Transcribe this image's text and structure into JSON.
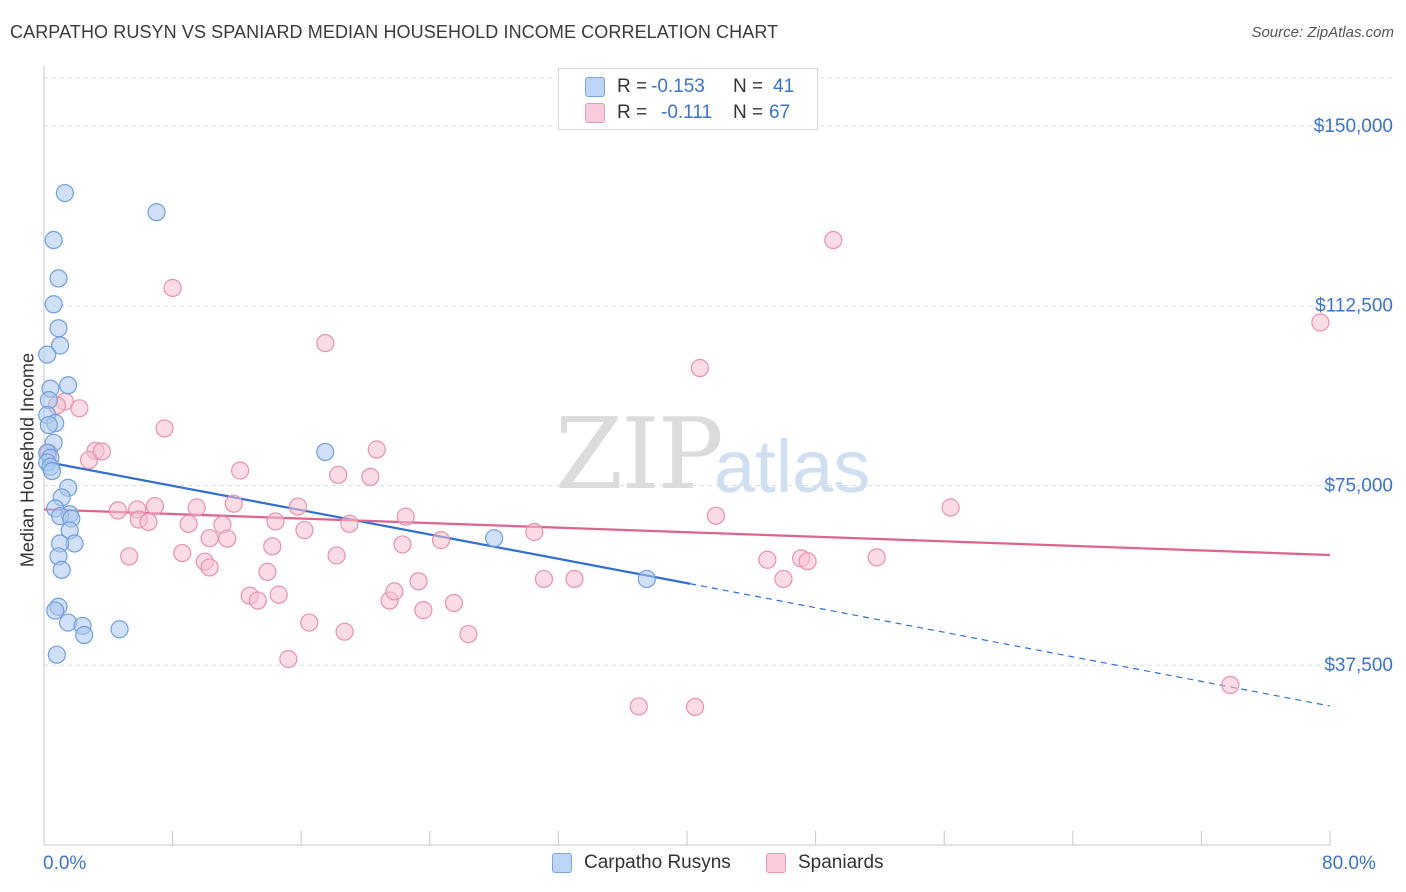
{
  "title": "CARPATHO RUSYN VS SPANIARD MEDIAN HOUSEHOLD INCOME CORRELATION CHART",
  "source": "Source: ZipAtlas.com",
  "watermark": {
    "zip": "ZIP",
    "atlas": "atlas"
  },
  "legend_top": {
    "rows": [
      {
        "r_label": "R =",
        "r_value": "-0.153",
        "n_label": "N =",
        "n_value": "41"
      },
      {
        "r_label": "R =",
        "r_value": "-0.111",
        "n_label": "N =",
        "n_value": "67"
      }
    ]
  },
  "legend_bottom": {
    "series1": "Carpatho Rusyns",
    "series2": "Spaniards"
  },
  "colors": {
    "blue_fill": "#a9c8f0",
    "blue_stroke": "#6f9fdc",
    "blue_line": "#2f6fd0",
    "pink_fill": "#f7bfd0",
    "pink_stroke": "#e890ad",
    "pink_line": "#e0628f",
    "grid": "#dddddd",
    "tick_label": "#3a74c8"
  },
  "chart_data": {
    "type": "scatter",
    "title": "CARPATHO RUSYN VS SPANIARD MEDIAN HOUSEHOLD INCOME CORRELATION CHART",
    "xlabel": "",
    "ylabel": "Median Household Income",
    "xlim": [
      0,
      80
    ],
    "ylim": [
      0,
      160000
    ],
    "x_tick_labels": [
      "0.0%",
      "80.0%"
    ],
    "y_ticks": [
      37500,
      75000,
      112500,
      150000
    ],
    "y_tick_labels": [
      "$37,500",
      "$75,000",
      "$112,500",
      "$150,000"
    ],
    "grid": true,
    "series": [
      {
        "name": "Carpatho Rusyns",
        "r": -0.153,
        "n": 41,
        "trend": {
          "x0": 0,
          "y0": 80000,
          "x1": 40.2,
          "y1": 54500,
          "dash_to_x": 80,
          "dash_to_y": 29000
        },
        "points": [
          [
            1.3,
            136000
          ],
          [
            0.6,
            126200
          ],
          [
            0.9,
            118200
          ],
          [
            0.6,
            112800
          ],
          [
            0.9,
            107800
          ],
          [
            1.0,
            104200
          ],
          [
            0.2,
            102300
          ],
          [
            1.5,
            95900
          ],
          [
            0.4,
            95200
          ],
          [
            0.3,
            92800
          ],
          [
            0.2,
            89700
          ],
          [
            0.7,
            88000
          ],
          [
            0.3,
            87600
          ],
          [
            0.6,
            83900
          ],
          [
            0.2,
            81800
          ],
          [
            0.4,
            80800
          ],
          [
            0.2,
            79800
          ],
          [
            0.4,
            78900
          ],
          [
            0.5,
            78000
          ],
          [
            1.5,
            74500
          ],
          [
            1.1,
            72500
          ],
          [
            0.7,
            70200
          ],
          [
            1.6,
            69000
          ],
          [
            1.0,
            68600
          ],
          [
            1.7,
            68100
          ],
          [
            1.6,
            65600
          ],
          [
            1.9,
            62900
          ],
          [
            1.0,
            62900
          ],
          [
            0.9,
            60200
          ],
          [
            1.1,
            57400
          ],
          [
            0.9,
            49700
          ],
          [
            0.7,
            48900
          ],
          [
            1.5,
            46400
          ],
          [
            2.4,
            45700
          ],
          [
            4.7,
            45000
          ],
          [
            2.5,
            43800
          ],
          [
            0.8,
            39700
          ],
          [
            7.0,
            132000
          ],
          [
            17.5,
            82000
          ],
          [
            28.0,
            64000
          ],
          [
            37.5,
            55500
          ]
        ]
      },
      {
        "name": "Spaniards",
        "r": -0.111,
        "n": 67,
        "trend": {
          "x0": 0,
          "y0": 70000,
          "x1": 80,
          "y1": 60500
        },
        "points": [
          [
            8.0,
            116200
          ],
          [
            17.5,
            104700
          ],
          [
            40.8,
            99500
          ],
          [
            49.1,
            126200
          ],
          [
            79.4,
            109000
          ],
          [
            1.3,
            92500
          ],
          [
            2.2,
            91100
          ],
          [
            0.8,
            91700
          ],
          [
            7.5,
            86900
          ],
          [
            0.3,
            81800
          ],
          [
            3.2,
            82200
          ],
          [
            2.8,
            80300
          ],
          [
            3.6,
            82100
          ],
          [
            12.2,
            78100
          ],
          [
            18.3,
            77200
          ],
          [
            20.3,
            76800
          ],
          [
            20.7,
            82500
          ],
          [
            5.8,
            70000
          ],
          [
            6.9,
            70700
          ],
          [
            4.6,
            69800
          ],
          [
            5.9,
            67900
          ],
          [
            6.5,
            67400
          ],
          [
            9.0,
            67000
          ],
          [
            9.5,
            70400
          ],
          [
            11.1,
            66800
          ],
          [
            11.8,
            71200
          ],
          [
            14.4,
            67500
          ],
          [
            15.8,
            70600
          ],
          [
            16.2,
            65700
          ],
          [
            19.0,
            67000
          ],
          [
            22.5,
            68500
          ],
          [
            22.3,
            62700
          ],
          [
            24.7,
            63600
          ],
          [
            30.5,
            65300
          ],
          [
            41.8,
            68700
          ],
          [
            56.4,
            70400
          ],
          [
            10.3,
            64000
          ],
          [
            11.4,
            63900
          ],
          [
            14.2,
            62300
          ],
          [
            5.3,
            60200
          ],
          [
            8.6,
            60900
          ],
          [
            10.0,
            59100
          ],
          [
            10.3,
            57900
          ],
          [
            13.9,
            57000
          ],
          [
            18.2,
            60400
          ],
          [
            23.3,
            55000
          ],
          [
            31.1,
            55500
          ],
          [
            33.0,
            55500
          ],
          [
            46.0,
            55500
          ],
          [
            45.0,
            59500
          ],
          [
            47.1,
            59800
          ],
          [
            47.5,
            59200
          ],
          [
            51.8,
            60000
          ],
          [
            12.8,
            52000
          ],
          [
            13.3,
            51000
          ],
          [
            14.6,
            52200
          ],
          [
            21.5,
            51000
          ],
          [
            21.8,
            52900
          ],
          [
            23.6,
            49000
          ],
          [
            25.5,
            50500
          ],
          [
            16.5,
            46400
          ],
          [
            18.7,
            44500
          ],
          [
            26.4,
            44000
          ],
          [
            15.2,
            38800
          ],
          [
            37.0,
            28900
          ],
          [
            73.8,
            33400
          ],
          [
            40.5,
            28800
          ]
        ]
      }
    ]
  }
}
